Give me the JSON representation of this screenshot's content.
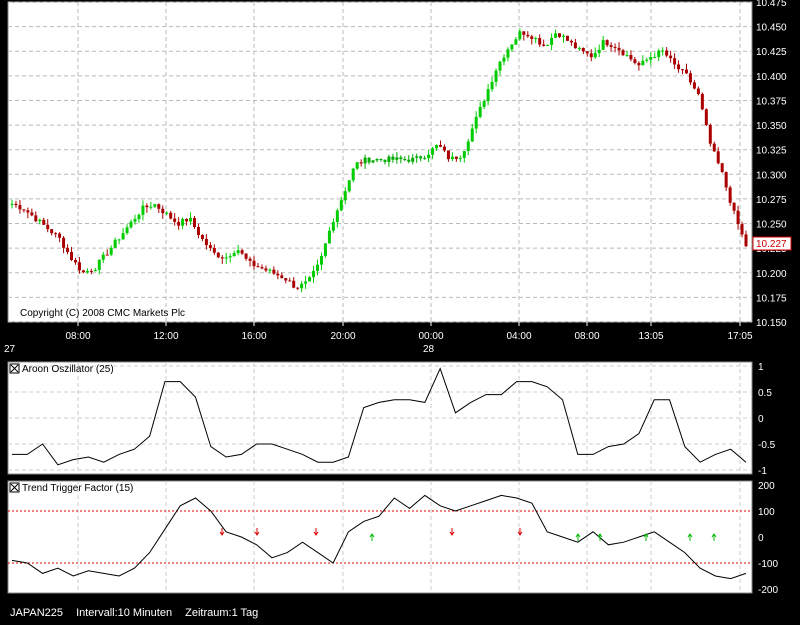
{
  "chart_data": [
    {
      "type": "candlestick",
      "title": "",
      "copyright": "Copyright (C) 2008 CMC Markets Plc",
      "y_ticks": [
        "10.475",
        "10.450",
        "10.425",
        "10.400",
        "10.375",
        "10.350",
        "10.325",
        "10.300",
        "10.275",
        "10.250",
        "10.225",
        "10.200",
        "10.175",
        "10.150"
      ],
      "ylim": [
        10.15,
        10.475
      ],
      "x_ticks": [
        "08:00",
        "12:00",
        "16:00",
        "20:00",
        "00:00",
        "04:00",
        "08:00",
        "13:05",
        "17:05"
      ],
      "date_labels": [
        "27",
        "28"
      ],
      "last_price": "10.227",
      "colors": {
        "up": "#00cc00",
        "down": "#aa0000",
        "flat": "#00aa00"
      },
      "close_path": [
        10.27,
        10.265,
        10.255,
        10.245,
        10.235,
        10.215,
        10.2,
        10.205,
        10.22,
        10.235,
        10.25,
        10.265,
        10.27,
        10.26,
        10.25,
        10.255,
        10.235,
        10.22,
        10.215,
        10.225,
        10.21,
        10.205,
        10.2,
        10.195,
        10.185,
        10.19,
        10.21,
        10.25,
        10.28,
        10.31,
        10.315,
        10.315,
        10.315,
        10.315,
        10.315,
        10.32,
        10.33,
        10.315,
        10.32,
        10.35,
        10.38,
        10.41,
        10.43,
        10.445,
        10.44,
        10.43,
        10.445,
        10.435,
        10.425,
        10.42,
        10.435,
        10.43,
        10.42,
        10.41,
        10.42,
        10.425,
        10.41,
        10.4,
        10.38,
        10.33,
        10.3,
        10.26,
        10.227
      ]
    },
    {
      "type": "line",
      "title": "Aroon Oszillator (25)",
      "y_ticks": [
        "1",
        "0.5",
        "0",
        "-0.5",
        "-1"
      ],
      "ylim": [
        -1,
        1
      ],
      "values": [
        -0.7,
        -0.7,
        -0.5,
        -0.9,
        -0.8,
        -0.75,
        -0.85,
        -0.7,
        -0.6,
        -0.35,
        0.7,
        0.7,
        0.4,
        -0.55,
        -0.75,
        -0.7,
        -0.5,
        -0.5,
        -0.6,
        -0.7,
        -0.85,
        -0.85,
        -0.75,
        0.2,
        0.3,
        0.35,
        0.35,
        0.3,
        0.95,
        0.1,
        0.3,
        0.45,
        0.45,
        0.7,
        0.7,
        0.6,
        0.35,
        -0.7,
        -0.7,
        -0.55,
        -0.5,
        -0.3,
        0.35,
        0.35,
        -0.55,
        -0.85,
        -0.7,
        -0.6,
        -0.85
      ]
    },
    {
      "type": "line",
      "title": "Trend Trigger Factor (15)",
      "y_ticks": [
        "200",
        "100",
        "0",
        "-100",
        "-200"
      ],
      "ylim": [
        -200,
        200
      ],
      "threshold_lines": [
        100,
        -100
      ],
      "values": [
        -90,
        -100,
        -140,
        -120,
        -150,
        -130,
        -140,
        -150,
        -120,
        -60,
        30,
        120,
        150,
        100,
        20,
        0,
        -30,
        -80,
        -60,
        -20,
        -60,
        -100,
        20,
        60,
        80,
        150,
        110,
        160,
        120,
        100,
        120,
        140,
        160,
        150,
        130,
        20,
        0,
        -20,
        20,
        -30,
        -20,
        0,
        20,
        -20,
        -60,
        -120,
        -150,
        -160,
        -140
      ]
    }
  ],
  "footer": {
    "symbol": "JAPAN225",
    "interval": "Intervall:10 Minuten",
    "period": "Zeitraum:1 Tag"
  }
}
